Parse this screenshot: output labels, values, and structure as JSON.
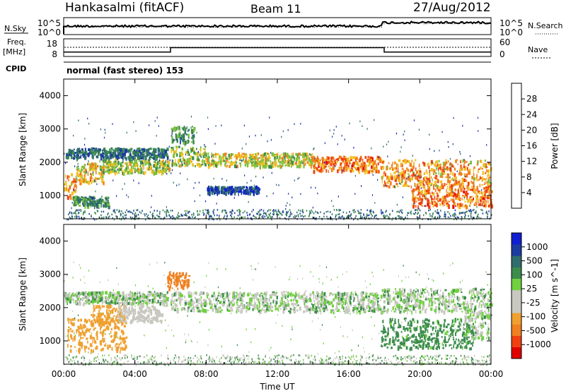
{
  "header": {
    "title": "Hankasalmi (fitACF)",
    "beam": "Beam 11",
    "date": "27/Aug/2012"
  },
  "noise_panel": {
    "left_label": "N.Sky",
    "right_label": "N.Search",
    "left_ticks": [
      "10^5",
      "10^0"
    ],
    "right_ticks": [
      "10^5",
      "10^0"
    ]
  },
  "freq_panel": {
    "left_label_1": "Freq.",
    "left_label_2": "[MHz]",
    "right_label": "Nave",
    "left_ticks": [
      "18",
      "8"
    ],
    "right_ticks": [
      "60",
      "0"
    ]
  },
  "cpid": {
    "label": "CPID",
    "value": "normal (fast stereo) 153"
  },
  "colors": {
    "power": [
      "#1020d0",
      "#1c3ca0",
      "#2f6e6c",
      "#3c8c4c",
      "#7cc040",
      "#f0c020",
      "#f08020",
      "#f04010",
      "#e00000"
    ],
    "velocity": [
      "#e00000",
      "#f04010",
      "#f08020",
      "#f0a030",
      "#c8c8c0",
      "#c8c8c0",
      "#70d040",
      "#3c8c4c",
      "#2f6e6c",
      "#1c3ca0",
      "#1020d0"
    ]
  },
  "chart_data": [
    {
      "type": "heatmap",
      "panel": "power",
      "ylabel": "Slant Range [km]",
      "yticks": [
        "1000",
        "2000",
        "3000",
        "4000"
      ],
      "ylim": [
        300,
        4500
      ],
      "colorbar_label": "Power [dB]",
      "colorbar_ticks": [
        "4",
        "8",
        "12",
        "16",
        "20",
        "24",
        "28"
      ],
      "colorbar_range": [
        0,
        32
      ],
      "bands": [
        {
          "t0": 0.1,
          "t1": 5.8,
          "r0": 2150,
          "r1": 2450,
          "v": 9
        },
        {
          "t0": 0.0,
          "t1": 0.7,
          "r0": 900,
          "r1": 1700,
          "v": 22
        },
        {
          "t0": 0.7,
          "t1": 2.3,
          "r0": 1400,
          "r1": 2000,
          "v": 20
        },
        {
          "t0": 2.0,
          "t1": 5.9,
          "r0": 1700,
          "r1": 2100,
          "v": 17
        },
        {
          "t0": 0.5,
          "t1": 2.5,
          "r0": 700,
          "r1": 1000,
          "v": 12
        },
        {
          "t0": 6.0,
          "t1": 7.3,
          "r0": 2600,
          "r1": 3100,
          "v": 12
        },
        {
          "t0": 6.0,
          "t1": 8.0,
          "r0": 1900,
          "r1": 2500,
          "v": 17
        },
        {
          "t0": 8.0,
          "t1": 14.0,
          "r0": 1900,
          "r1": 2300,
          "v": 18
        },
        {
          "t0": 14.0,
          "t1": 17.8,
          "r0": 1750,
          "r1": 2200,
          "v": 24
        },
        {
          "t0": 17.8,
          "t1": 24.0,
          "r0": 1300,
          "r1": 2100,
          "v": 22
        },
        {
          "t0": 19.5,
          "t1": 24.0,
          "r0": 700,
          "r1": 1300,
          "v": 24
        },
        {
          "t0": 8.0,
          "t1": 11.0,
          "r0": 1100,
          "r1": 1300,
          "v": 6
        }
      ]
    },
    {
      "type": "heatmap",
      "panel": "velocity",
      "ylabel": "Slant Range [km]",
      "yticks": [
        "1000",
        "2000",
        "3000",
        "4000"
      ],
      "ylim": [
        300,
        4500
      ],
      "xlabel": "Time UT",
      "xticks": [
        "00:00",
        "04:00",
        "08:00",
        "12:00",
        "16:00",
        "20:00",
        "00:00"
      ],
      "xlim": [
        0,
        24
      ],
      "colorbar_label": "Velocity [m s^-1]",
      "colorbar_ticks": [
        "-1000",
        "-500",
        "-100",
        "-25",
        "25",
        "100",
        "500",
        "1000"
      ],
      "bands": [
        {
          "t0": 0.0,
          "t1": 5.8,
          "r0": 2150,
          "r1": 2500,
          "v": 0
        },
        {
          "t0": 0.2,
          "t1": 3.5,
          "r0": 700,
          "r1": 1700,
          "v": -200
        },
        {
          "t0": 1.5,
          "t1": 3.4,
          "r0": 1500,
          "r1": 2100,
          "v": -180
        },
        {
          "t0": 3.0,
          "t1": 5.5,
          "r0": 1600,
          "r1": 2100,
          "v": -40
        },
        {
          "t0": 5.8,
          "t1": 7.0,
          "r0": 2600,
          "r1": 3100,
          "v": -400
        },
        {
          "t0": 6.0,
          "t1": 17.8,
          "r0": 1900,
          "r1": 2500,
          "v": 0
        },
        {
          "t0": 17.8,
          "t1": 24.0,
          "r0": 1900,
          "r1": 2600,
          "v": 0
        },
        {
          "t0": 17.8,
          "t1": 23.0,
          "r0": 800,
          "r1": 1700,
          "v": 60
        },
        {
          "t0": 22.5,
          "t1": 24.0,
          "r0": 1100,
          "r1": 1900,
          "v": 0
        }
      ]
    }
  ]
}
